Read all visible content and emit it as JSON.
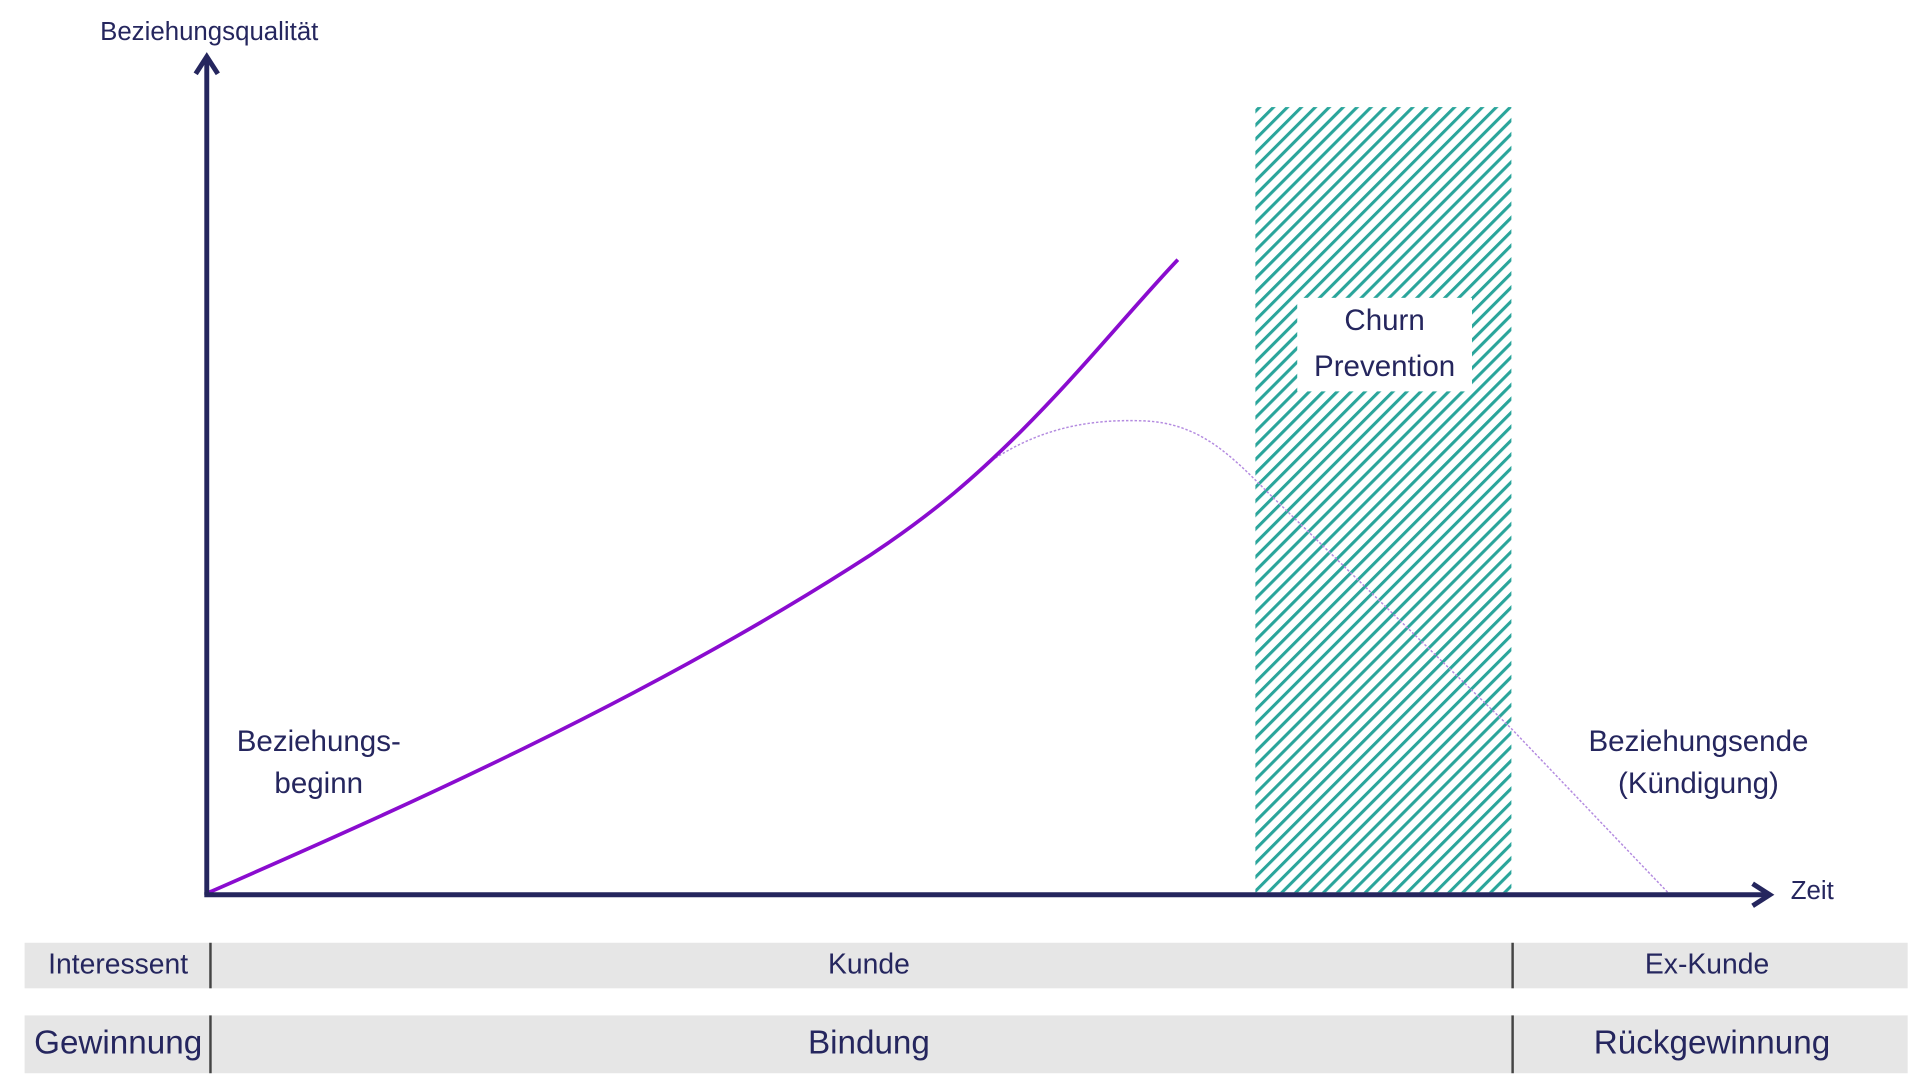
{
  "axes": {
    "y_label": "Beziehungsqualität",
    "x_label": "Zeit"
  },
  "annotations": {
    "churn_prevention": [
      "Churn",
      "Prevention"
    ],
    "start": [
      "Beziehungs-",
      "beginn"
    ],
    "end": [
      "Beziehungsende",
      "(Kündigung)"
    ]
  },
  "rows": [
    [
      "Interessent",
      "Kunde",
      "Ex-Kunde"
    ],
    [
      "Gewinnung",
      "Bindung",
      "Rückgewinnung"
    ]
  ]
}
